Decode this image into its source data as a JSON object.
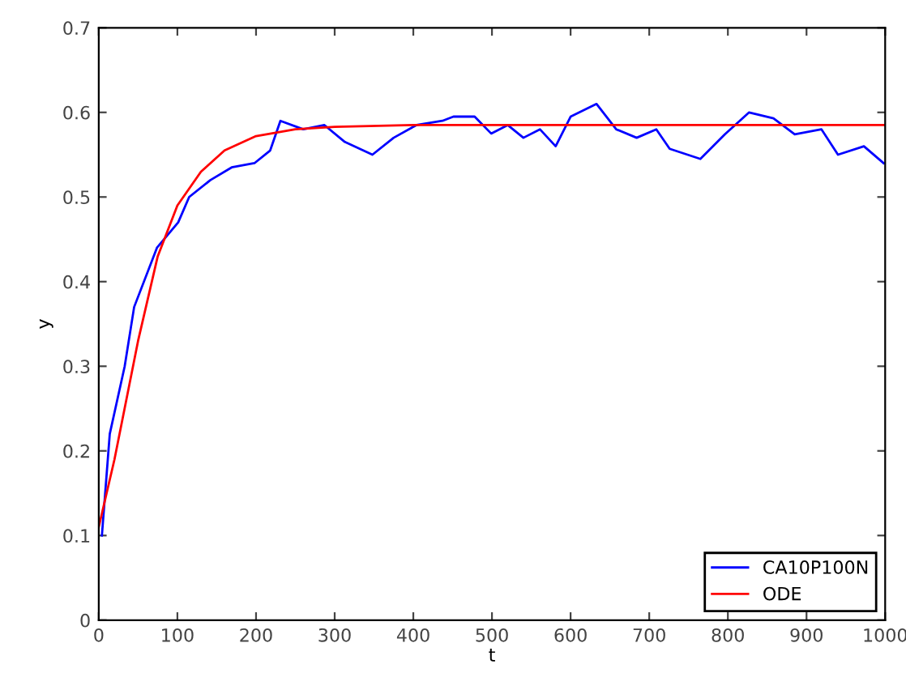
{
  "chart_data": {
    "type": "line",
    "xlabel": "t",
    "ylabel": "y",
    "xlim": [
      0,
      1000
    ],
    "ylim": [
      0,
      0.7
    ],
    "xticks": [
      0,
      100,
      200,
      300,
      400,
      500,
      600,
      700,
      800,
      900,
      1000
    ],
    "yticks": [
      0,
      0.1,
      0.2,
      0.3,
      0.4,
      0.5,
      0.6,
      0.7
    ],
    "legend": "bottom right",
    "grid": false,
    "series": [
      {
        "name": "CA10P100N",
        "color": "#0000ff",
        "x": [
          4,
          14,
          33,
          45,
          74,
          101,
          115,
          142,
          169,
          198,
          218,
          231,
          260,
          287,
          313,
          348,
          375,
          404,
          437,
          451,
          478,
          499,
          520,
          540,
          561,
          581,
          600,
          633,
          658,
          684,
          709,
          726,
          765,
          796,
          827,
          858,
          885,
          919,
          940,
          973,
          998
        ],
        "values": [
          0.1,
          0.22,
          0.3,
          0.37,
          0.44,
          0.47,
          0.5,
          0.52,
          0.535,
          0.54,
          0.555,
          0.59,
          0.58,
          0.585,
          0.565,
          0.55,
          0.57,
          0.585,
          0.59,
          0.595,
          0.595,
          0.575,
          0.585,
          0.57,
          0.58,
          0.56,
          0.595,
          0.61,
          0.58,
          0.57,
          0.58,
          0.557,
          0.545,
          0.574,
          0.6,
          0.593,
          0.574,
          0.58,
          0.55,
          0.56,
          0.54
        ]
      },
      {
        "name": "ODE",
        "color": "#ff0000",
        "x": [
          0,
          20,
          50,
          75,
          100,
          130,
          160,
          200,
          250,
          300,
          400,
          1000
        ],
        "values": [
          0.11,
          0.19,
          0.33,
          0.43,
          0.49,
          0.53,
          0.555,
          0.572,
          0.58,
          0.583,
          0.585,
          0.585
        ]
      }
    ]
  }
}
